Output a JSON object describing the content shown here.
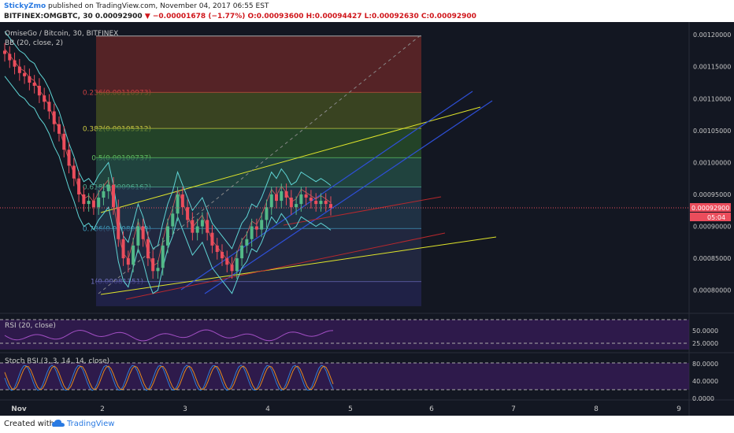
{
  "header": {
    "user": "StickyZmo",
    "published": "published on TradingView.com, November 04, 2017 06:55 EST",
    "symbol": "BITFINEX:OMGBTC, 30",
    "price": "0.00092900",
    "change": "−0.00001678 (−1.77%)",
    "ohlc": "O:0.00093600 H:0.00094427 L:0.00092630 C:0.00092900"
  },
  "legend": {
    "title": "OmiseGo / Bitcoin, 30, BITFINEX",
    "bb": "BB (20, close, 2)",
    "rsi": "RSI (20, close)",
    "stoch": "Stoch RSI (3, 3, 14, 14, close)"
  },
  "colors": {
    "bg": "#131722",
    "up": "#53b987",
    "down": "#eb4d5c",
    "bb": "#5fd4d4",
    "yellow": "#e0e52a",
    "blue": "#2e4fd6",
    "red": "#b8282d",
    "purple": "#7b3fa3"
  },
  "chart_data": {
    "type": "candlestick",
    "price_ylim": [
      0.00077,
      0.00121
    ],
    "price_ticks": [
      "0.00120000",
      "0.00115000",
      "0.00110000",
      "0.00105000",
      "0.00100000",
      "0.00095000",
      "0.00090000",
      "0.00085000",
      "0.00080000"
    ],
    "x_ticks": [
      "Nov",
      "2",
      "3",
      "4",
      "5",
      "6",
      "7",
      "8",
      "9"
    ],
    "last_price": "0.00092900",
    "countdown": "05:04",
    "fib_levels": [
      {
        "label": "0.236(0.00110973)",
        "value": 0.00110973,
        "color": "#c94040"
      },
      {
        "label": "0.382(0.00105312)",
        "value": 0.00105312,
        "color": "#c9c740"
      },
      {
        "label": "0.5(0.00100737)",
        "value": 0.00100737,
        "color": "#5fbf5f"
      },
      {
        "label": "0.618(0.00096162)",
        "value": 0.00096162,
        "color": "#4fae8f"
      },
      {
        "label": "0.786(0.00089649)",
        "value": 0.00089649,
        "color": "#3f9fbf"
      },
      {
        "label": "1(0.00081351)",
        "value": 0.00081351,
        "color": "#6f6fbf"
      }
    ],
    "close_series": [
      0.00117,
      0.00116,
      0.00115,
      0.00114,
      0.001135,
      0.001125,
      0.00112,
      0.001105,
      0.001095,
      0.00108,
      0.00106,
      0.001045,
      0.00102,
      0.000995,
      0.000975,
      0.00095,
      0.000935,
      0.00094,
      0.00093,
      0.000945,
      0.000955,
      0.000965,
      0.00093,
      0.00088,
      0.00085,
      0.00084,
      0.00087,
      0.0009,
      0.00088,
      0.00085,
      0.00083,
      0.000835,
      0.00087,
      0.0009,
      0.00092,
      0.00095,
      0.00093,
      0.00091,
      0.00089,
      0.0009,
      0.00091,
      0.00089,
      0.00087,
      0.00086,
      0.00085,
      0.00084,
      0.00083,
      0.00085,
      0.00087,
      0.00088,
      0.0009,
      0.000895,
      0.00091,
      0.00093,
      0.00095,
      0.00094,
      0.000955,
      0.000945,
      0.00093,
      0.000935,
      0.00095,
      0.000945,
      0.00094,
      0.000935,
      0.00094,
      0.000935,
      0.000929
    ],
    "rsi_ticks": [
      "50.0000",
      "25.0000"
    ],
    "stoch_ticks": [
      "80.0000",
      "40.0000",
      "0.0000"
    ]
  }
}
